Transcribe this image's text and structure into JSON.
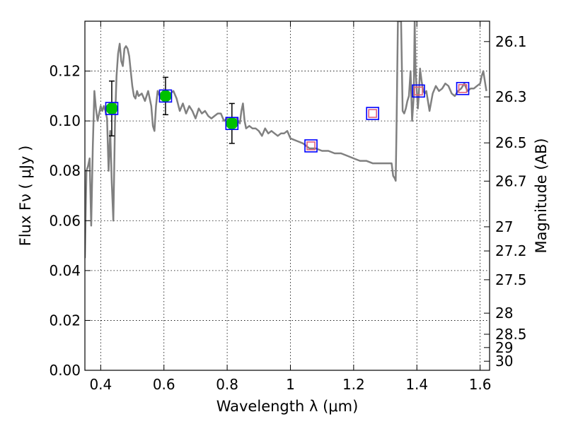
{
  "chart_data": {
    "type": "scatter",
    "xlabel": "Wavelength  λ (μm)",
    "ylabel": "Flux  Fν  ( μJy )",
    "y2label": "Magnitude (AB)",
    "xlim": [
      0.35,
      1.63
    ],
    "ylim": [
      0.0,
      0.14
    ],
    "grid": true,
    "x_ticks": [
      {
        "value": 0.4,
        "label": "0.4"
      },
      {
        "value": 0.6,
        "label": "0.6"
      },
      {
        "value": 0.8,
        "label": "0.8"
      },
      {
        "value": 1.0,
        "label": "1"
      },
      {
        "value": 1.2,
        "label": "1.2"
      },
      {
        "value": 1.4,
        "label": "1.4"
      },
      {
        "value": 1.6,
        "label": "1.6"
      }
    ],
    "y_ticks": [
      {
        "value": 0.0,
        "label": "0.00"
      },
      {
        "value": 0.02,
        "label": "0.02"
      },
      {
        "value": 0.04,
        "label": "0.04"
      },
      {
        "value": 0.06,
        "label": "0.06"
      },
      {
        "value": 0.08,
        "label": "0.08"
      },
      {
        "value": 0.1,
        "label": "0.10"
      },
      {
        "value": 0.12,
        "label": "0.12"
      }
    ],
    "y2_ticks": [
      {
        "value": 26.1,
        "label": "26.1"
      },
      {
        "value": 26.3,
        "label": "26.3"
      },
      {
        "value": 26.5,
        "label": "26.5"
      },
      {
        "value": 26.7,
        "label": "26.7"
      },
      {
        "value": 27.0,
        "label": "27"
      },
      {
        "value": 27.2,
        "label": "27.2"
      },
      {
        "value": 27.5,
        "label": "27.5"
      },
      {
        "value": 28.0,
        "label": "28"
      },
      {
        "value": 28.5,
        "label": "28.5"
      },
      {
        "value": 29.0,
        "label": "29"
      },
      {
        "value": 30.0,
        "label": "30"
      }
    ],
    "series": [
      {
        "kind": "line",
        "color": "#808080",
        "x": [
          0.35,
          0.355,
          0.36,
          0.365,
          0.37,
          0.375,
          0.38,
          0.385,
          0.39,
          0.395,
          0.4,
          0.405,
          0.41,
          0.415,
          0.42,
          0.425,
          0.43,
          0.435,
          0.44,
          0.445,
          0.45,
          0.455,
          0.46,
          0.465,
          0.47,
          0.475,
          0.48,
          0.485,
          0.49,
          0.495,
          0.5,
          0.505,
          0.51,
          0.515,
          0.52,
          0.53,
          0.54,
          0.55,
          0.56,
          0.565,
          0.57,
          0.575,
          0.58,
          0.59,
          0.6,
          0.61,
          0.62,
          0.63,
          0.64,
          0.65,
          0.66,
          0.67,
          0.68,
          0.69,
          0.7,
          0.71,
          0.72,
          0.73,
          0.74,
          0.75,
          0.76,
          0.77,
          0.78,
          0.79,
          0.8,
          0.81,
          0.82,
          0.83,
          0.84,
          0.845,
          0.85,
          0.855,
          0.86,
          0.87,
          0.88,
          0.89,
          0.9,
          0.91,
          0.92,
          0.93,
          0.94,
          0.95,
          0.96,
          0.97,
          0.98,
          0.99,
          1.0,
          1.02,
          1.04,
          1.06,
          1.08,
          1.1,
          1.12,
          1.14,
          1.16,
          1.18,
          1.2,
          1.22,
          1.24,
          1.26,
          1.28,
          1.3,
          1.32,
          1.325,
          1.33,
          1.333,
          1.336,
          1.34,
          1.345,
          1.35,
          1.355,
          1.36,
          1.365,
          1.37,
          1.375,
          1.38,
          1.385,
          1.39,
          1.393,
          1.396,
          1.4,
          1.403,
          1.406,
          1.41,
          1.415,
          1.42,
          1.425,
          1.43,
          1.44,
          1.45,
          1.46,
          1.47,
          1.48,
          1.49,
          1.5,
          1.51,
          1.52,
          1.53,
          1.54,
          1.55,
          1.56,
          1.57,
          1.58,
          1.59,
          1.6,
          1.605,
          1.61,
          1.615,
          1.62
        ],
        "values": [
          0.045,
          0.08,
          0.082,
          0.085,
          0.058,
          0.09,
          0.112,
          0.105,
          0.1,
          0.103,
          0.106,
          0.104,
          0.106,
          0.104,
          0.101,
          0.08,
          0.096,
          0.075,
          0.06,
          0.099,
          0.118,
          0.127,
          0.131,
          0.124,
          0.122,
          0.129,
          0.13,
          0.129,
          0.126,
          0.12,
          0.114,
          0.11,
          0.109,
          0.112,
          0.11,
          0.111,
          0.108,
          0.112,
          0.106,
          0.098,
          0.096,
          0.106,
          0.112,
          0.109,
          0.11,
          0.109,
          0.111,
          0.112,
          0.109,
          0.104,
          0.107,
          0.103,
          0.106,
          0.104,
          0.101,
          0.105,
          0.103,
          0.104,
          0.102,
          0.101,
          0.102,
          0.103,
          0.103,
          0.1,
          0.101,
          0.1,
          0.1,
          0.101,
          0.099,
          0.104,
          0.107,
          0.1,
          0.097,
          0.098,
          0.097,
          0.097,
          0.096,
          0.094,
          0.097,
          0.095,
          0.096,
          0.095,
          0.094,
          0.095,
          0.095,
          0.096,
          0.093,
          0.092,
          0.091,
          0.089,
          0.089,
          0.088,
          0.088,
          0.087,
          0.087,
          0.086,
          0.085,
          0.084,
          0.084,
          0.083,
          0.083,
          0.083,
          0.083,
          0.078,
          0.077,
          0.076,
          0.1,
          0.14,
          0.14,
          0.14,
          0.104,
          0.103,
          0.105,
          0.108,
          0.11,
          0.12,
          0.1,
          0.11,
          0.14,
          0.12,
          0.112,
          0.105,
          0.11,
          0.121,
          0.116,
          0.112,
          0.111,
          0.112,
          0.104,
          0.111,
          0.114,
          0.112,
          0.113,
          0.115,
          0.114,
          0.111,
          0.11,
          0.112,
          0.113,
          0.115,
          0.112,
          0.113,
          0.113,
          0.114,
          0.115,
          0.118,
          0.12,
          0.116,
          0.112
        ]
      },
      {
        "kind": "points",
        "marker": "circle",
        "fill": "#00c000",
        "x": [
          0.435,
          0.605,
          0.815
        ],
        "values": [
          0.105,
          0.11,
          0.099
        ],
        "yerr": [
          0.011,
          0.0075,
          0.008
        ]
      },
      {
        "kind": "points",
        "marker": "square",
        "stroke": "#0000ff",
        "x": [
          0.435,
          0.605,
          0.815,
          1.065,
          1.26,
          1.405,
          1.545
        ],
        "values": [
          0.105,
          0.11,
          0.099,
          0.09,
          0.103,
          0.112,
          0.113
        ]
      },
      {
        "kind": "points",
        "marker": "square",
        "stroke": "#e0607e",
        "x": [
          1.065,
          1.26,
          1.405,
          1.545
        ],
        "values": [
          0.09,
          0.103,
          0.112,
          0.113
        ]
      }
    ]
  }
}
